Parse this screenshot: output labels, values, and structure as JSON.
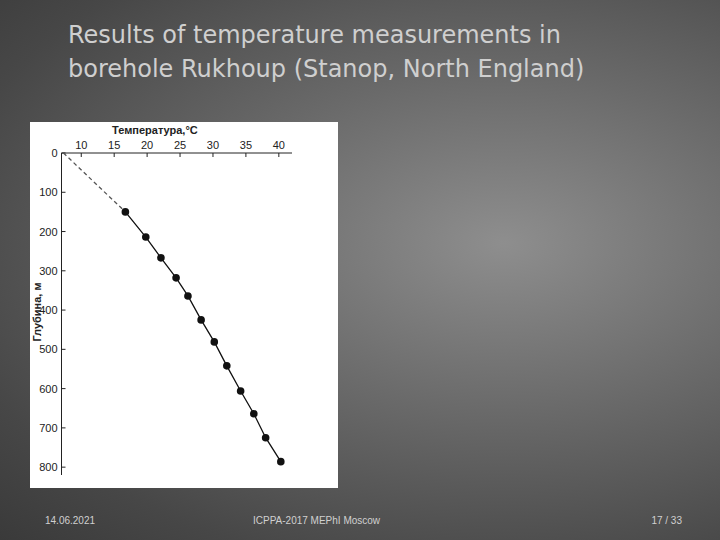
{
  "slide": {
    "title": "Results of temperature measurements in borehole Rukhoup (Stanop, North England)",
    "date": "14.06.2021",
    "footer": "ICPPA-2017 MEPhI Moscow",
    "page": "17 / 33"
  },
  "chart_data": {
    "type": "line",
    "x_label": "Температура,°C",
    "y_label": "Глубина, м",
    "xlim": [
      7,
      42
    ],
    "xticks": [
      10,
      15,
      20,
      25,
      30,
      35,
      40
    ],
    "ylim": [
      0,
      820
    ],
    "yticks": [
      0,
      100,
      200,
      300,
      400,
      500,
      600,
      700,
      800
    ],
    "grid": false,
    "series": [
      {
        "type": "line",
        "line_style": "dashed",
        "color": "#555555",
        "x": [
          7.3,
          16.7
        ],
        "values": [
          0,
          150
        ]
      },
      {
        "type": "line",
        "line_style": "solid",
        "marker": "circle",
        "color": "#111111",
        "x": [
          16.7,
          19.8,
          22.1,
          24.4,
          26.2,
          28.2,
          30.2,
          32.1,
          34.2,
          36.2,
          38.0,
          40.3
        ],
        "values": [
          150,
          214,
          267,
          318,
          364,
          425,
          481,
          542,
          606,
          664,
          725,
          786
        ]
      }
    ]
  }
}
